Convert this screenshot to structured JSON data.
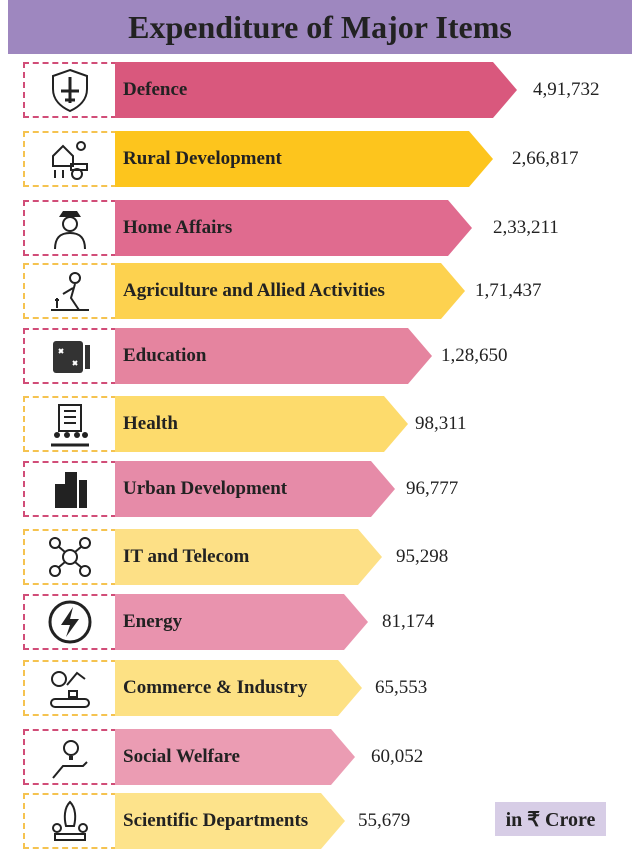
{
  "chart_data": {
    "type": "bar",
    "orientation": "horizontal",
    "title": "Expenditure of Major Items",
    "unit_note": "in ₹ Crore",
    "categories": [
      "Defence",
      "Rural Development",
      "Home Affairs",
      "Agriculture and Allied Activities",
      "Education",
      "Health",
      "Urban Development",
      "IT and Telecom",
      "Energy",
      "Commerce & Industry",
      "Social Welfare",
      "Scientific Departments"
    ],
    "values": [
      491732,
      266817,
      233211,
      171437,
      128650,
      98311,
      96777,
      95298,
      81174,
      65553,
      60052,
      55679
    ],
    "value_labels": [
      "4,91,732",
      "2,66,817",
      "2,33,211",
      "1,71,437",
      "1,28,650",
      "98,311",
      "96,777",
      "95,298",
      "81,174",
      "65,553",
      "60,052",
      "55,679"
    ],
    "icons": [
      "shield-jet-icon",
      "rural-farm-icon",
      "police-officer-icon",
      "farmer-icon",
      "education-plan-icon",
      "hospital-icon",
      "city-buildings-icon",
      "network-people-icon",
      "energy-bolt-icon",
      "industry-robot-icon",
      "idea-hand-icon",
      "rocket-science-icon"
    ],
    "colors": [
      "#d9587d",
      "#fdc51d",
      "#e06b8f",
      "#fdd24f",
      "#e5849f",
      "#fddb6c",
      "#e68ba8",
      "#fde086",
      "#e993ae",
      "#fde184",
      "#eb9cb3",
      "#fde38b"
    ],
    "border_colors": {
      "pink": "#d14d78",
      "yellow": "#f5c350"
    },
    "title_bg": "#9e87bf"
  }
}
